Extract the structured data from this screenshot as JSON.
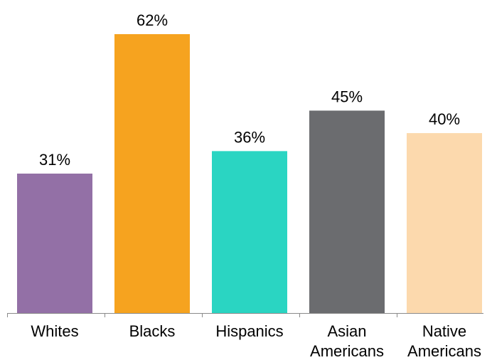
{
  "chart_data": {
    "type": "bar",
    "title": "",
    "xlabel": "",
    "ylabel": "",
    "ylim": [
      0,
      62
    ],
    "grid": false,
    "legend": "none",
    "categories": [
      {
        "lines": [
          "Whites"
        ]
      },
      {
        "lines": [
          "Blacks"
        ]
      },
      {
        "lines": [
          "Hispanics"
        ]
      },
      {
        "lines": [
          "Asian",
          "Americans"
        ]
      },
      {
        "lines": [
          "Native",
          "Americans"
        ]
      }
    ],
    "values": [
      31,
      62,
      36,
      45,
      40
    ],
    "value_labels": [
      "31%",
      "62%",
      "36%",
      "45%",
      "40%"
    ],
    "colors": [
      "#9370a6",
      "#f6a31f",
      "#2ad5c2",
      "#6b6c6f",
      "#fcd9ad"
    ],
    "axis_color": "#8a8a8a"
  }
}
